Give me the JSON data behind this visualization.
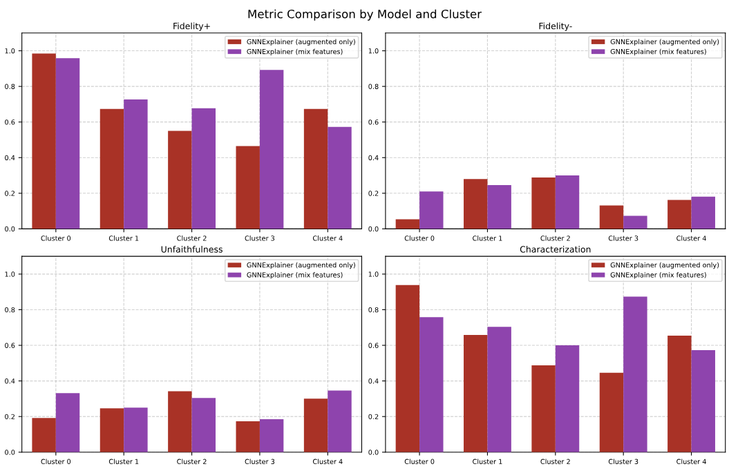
{
  "chart_data": [
    {
      "type": "bar",
      "title": "Fidelity+",
      "annotations": [
        "Metric Comparison by Model and Cluster"
      ],
      "categories": [
        "Cluster 0",
        "Cluster 1",
        "Cluster 2",
        "Cluster 3",
        "Cluster 4"
      ],
      "series": [
        {
          "name": "GNNExplainer (augmented only)",
          "color": "#a93226",
          "values": [
            0.985,
            0.673,
            0.55,
            0.465,
            0.673
          ]
        },
        {
          "name": "GNNExplainer (mix features)",
          "color": "#8e44ad",
          "values": [
            0.958,
            0.727,
            0.677,
            0.892,
            0.573
          ]
        }
      ],
      "ylim": [
        0,
        1.1
      ],
      "yticks": [
        {
          "value": 0,
          "label": "0.0"
        },
        {
          "value": 0.2,
          "label": "0.2"
        },
        {
          "value": 0.4,
          "label": "0.4"
        },
        {
          "value": 0.6,
          "label": "0.6"
        },
        {
          "value": 0.8,
          "label": "0.8"
        },
        {
          "value": 1.0,
          "label": "1.0"
        }
      ],
      "grid": true,
      "legend": "top right"
    },
    {
      "type": "bar",
      "title": "Fidelity-",
      "categories": [
        "Cluster 0",
        "Cluster 1",
        "Cluster 2",
        "Cluster 3",
        "Cluster 4"
      ],
      "series": [
        {
          "name": "GNNExplainer (augmented only)",
          "color": "#a93226",
          "values": [
            0.054,
            0.28,
            0.288,
            0.131,
            0.162
          ]
        },
        {
          "name": "GNNExplainer (mix features)",
          "color": "#8e44ad",
          "values": [
            0.21,
            0.246,
            0.3,
            0.073,
            0.181
          ]
        }
      ],
      "ylim": [
        0,
        1.1
      ],
      "yticks": [
        {
          "value": 0,
          "label": "0.0"
        },
        {
          "value": 0.2,
          "label": "0.2"
        },
        {
          "value": 0.4,
          "label": "0.4"
        },
        {
          "value": 0.6,
          "label": "0.6"
        },
        {
          "value": 0.8,
          "label": "0.8"
        },
        {
          "value": 1.0,
          "label": "1.0"
        }
      ],
      "grid": true,
      "legend": "top right"
    },
    {
      "type": "bar",
      "title": "Unfaithfulness",
      "categories": [
        "Cluster 0",
        "Cluster 1",
        "Cluster 2",
        "Cluster 3",
        "Cluster 4"
      ],
      "series": [
        {
          "name": "GNNExplainer (augmented only)",
          "color": "#a93226",
          "values": [
            0.192,
            0.246,
            0.342,
            0.173,
            0.3
          ]
        },
        {
          "name": "GNNExplainer (mix features)",
          "color": "#8e44ad",
          "values": [
            0.331,
            0.25,
            0.304,
            0.185,
            0.346
          ]
        }
      ],
      "ylim": [
        0,
        1.1
      ],
      "yticks": [
        {
          "value": 0,
          "label": "0.0"
        },
        {
          "value": 0.2,
          "label": "0.2"
        },
        {
          "value": 0.4,
          "label": "0.4"
        },
        {
          "value": 0.6,
          "label": "0.6"
        },
        {
          "value": 0.8,
          "label": "0.8"
        },
        {
          "value": 1.0,
          "label": "1.0"
        }
      ],
      "grid": true,
      "legend": "top right"
    },
    {
      "type": "bar",
      "title": "Characterization",
      "categories": [
        "Cluster 0",
        "Cluster 1",
        "Cluster 2",
        "Cluster 3",
        "Cluster 4"
      ],
      "series": [
        {
          "name": "GNNExplainer (augmented only)",
          "color": "#a93226",
          "values": [
            0.938,
            0.658,
            0.488,
            0.446,
            0.654
          ]
        },
        {
          "name": "GNNExplainer (mix features)",
          "color": "#8e44ad",
          "values": [
            0.758,
            0.704,
            0.6,
            0.873,
            0.573
          ]
        }
      ],
      "ylim": [
        0,
        1.1
      ],
      "yticks": [
        {
          "value": 0,
          "label": "0.0"
        },
        {
          "value": 0.2,
          "label": "0.2"
        },
        {
          "value": 0.4,
          "label": "0.4"
        },
        {
          "value": 0.6,
          "label": "0.6"
        },
        {
          "value": 0.8,
          "label": "0.8"
        },
        {
          "value": 1.0,
          "label": "1.0"
        }
      ],
      "grid": true,
      "legend": "top right"
    }
  ]
}
